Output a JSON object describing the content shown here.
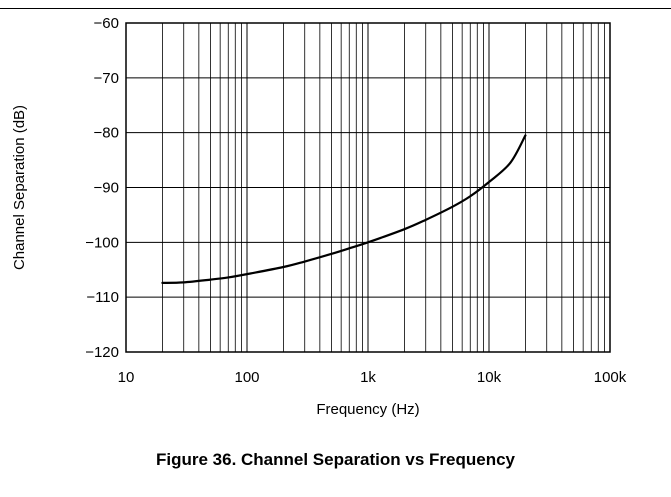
{
  "caption": "Figure 36. Channel Separation vs Frequency",
  "chart_data": {
    "type": "line",
    "title": "",
    "xlabel": "Frequency (Hz)",
    "ylabel": "Channel Separation (dB)",
    "xscale": "log",
    "xlim": [
      10,
      100000
    ],
    "ylim": [
      -120,
      -60
    ],
    "grid": true,
    "x_ticks": [
      {
        "value": 10,
        "label": "10"
      },
      {
        "value": 100,
        "label": "100"
      },
      {
        "value": 1000,
        "label": "1k"
      },
      {
        "value": 10000,
        "label": "10k"
      },
      {
        "value": 100000,
        "label": "100k"
      }
    ],
    "y_ticks": [
      {
        "value": -60,
        "label": "−60"
      },
      {
        "value": -70,
        "label": "−70"
      },
      {
        "value": -80,
        "label": "−80"
      },
      {
        "value": -90,
        "label": "−90"
      },
      {
        "value": -100,
        "label": "−100"
      },
      {
        "value": -110,
        "label": "−110"
      },
      {
        "value": -120,
        "label": "−120"
      }
    ],
    "series": [
      {
        "color": "#000000",
        "x": [
          20,
          30,
          50,
          70,
          100,
          200,
          300,
          500,
          700,
          1000,
          2000,
          3000,
          5000,
          7000,
          10000,
          15000,
          20000
        ],
        "y": [
          -107.4,
          -107.3,
          -106.8,
          -106.4,
          -105.8,
          -104.5,
          -103.5,
          -102.1,
          -101.1,
          -100.0,
          -97.6,
          -95.9,
          -93.5,
          -91.6,
          -89.0,
          -85.5,
          -80.5
        ]
      }
    ]
  }
}
